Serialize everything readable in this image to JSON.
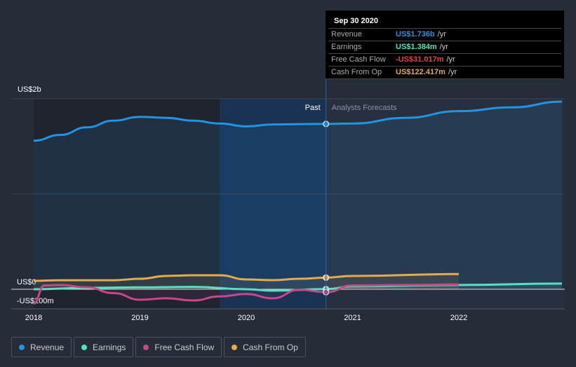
{
  "chart_data": {
    "type": "line",
    "title": "",
    "xlabel": "",
    "ylabel": "",
    "x_ticks": [
      "2018",
      "2019",
      "2020",
      "2021",
      "2022"
    ],
    "y_ticks": [
      "US$2b",
      "US$0",
      "-US$200m"
    ],
    "ylim_usd_m": [
      -250,
      2000
    ],
    "xlim": [
      2017.8,
      2022.98
    ],
    "past_label": "Past",
    "forecast_label": "Analysts Forecasts",
    "divider_x": 2020.75,
    "series": [
      {
        "name": "Revenue",
        "color": "#2394df",
        "unit": "m",
        "points": [
          [
            2018,
            1560
          ],
          [
            2018.25,
            1620
          ],
          [
            2018.5,
            1700
          ],
          [
            2018.75,
            1770
          ],
          [
            2019,
            1810
          ],
          [
            2019.25,
            1800
          ],
          [
            2019.5,
            1770
          ],
          [
            2019.75,
            1740
          ],
          [
            2020,
            1710
          ],
          [
            2020.25,
            1730
          ],
          [
            2020.75,
            1736
          ],
          [
            2021,
            1740
          ],
          [
            2021.5,
            1800
          ],
          [
            2022,
            1870
          ],
          [
            2022.5,
            1910
          ],
          [
            2022.97,
            1970
          ]
        ]
      },
      {
        "name": "Earnings",
        "color": "#58e1c1",
        "unit": "m",
        "points": [
          [
            2018,
            0
          ],
          [
            2018.5,
            15
          ],
          [
            2019,
            20
          ],
          [
            2019.5,
            25
          ],
          [
            2020,
            0
          ],
          [
            2020.25,
            -15
          ],
          [
            2020.75,
            1.384
          ],
          [
            2021,
            30
          ],
          [
            2022,
            45
          ],
          [
            2022.97,
            60
          ]
        ]
      },
      {
        "name": "Free Cash Flow",
        "color": "#c5488a",
        "unit": "m",
        "points": [
          [
            2018,
            -150
          ],
          [
            2018.1,
            40
          ],
          [
            2018.25,
            45
          ],
          [
            2018.5,
            20
          ],
          [
            2018.75,
            -40
          ],
          [
            2019,
            -110
          ],
          [
            2019.25,
            -95
          ],
          [
            2019.5,
            -118
          ],
          [
            2019.75,
            -75
          ],
          [
            2020,
            -50
          ],
          [
            2020.25,
            -95
          ],
          [
            2020.5,
            -5
          ],
          [
            2020.75,
            -31.017
          ],
          [
            2021,
            40
          ],
          [
            2021.5,
            45
          ],
          [
            2022,
            50
          ]
        ]
      },
      {
        "name": "Cash From Op",
        "color": "#e5a952",
        "unit": "m",
        "points": [
          [
            2018,
            88
          ],
          [
            2018.25,
            95
          ],
          [
            2018.75,
            95
          ],
          [
            2019,
            110
          ],
          [
            2019.25,
            140
          ],
          [
            2019.5,
            147
          ],
          [
            2019.75,
            147
          ],
          [
            2020,
            103
          ],
          [
            2020.25,
            96
          ],
          [
            2020.5,
            110
          ],
          [
            2020.75,
            122.417
          ],
          [
            2021,
            140
          ],
          [
            2022,
            160
          ]
        ]
      }
    ]
  },
  "tooltip": {
    "date": "Sep 30 2020",
    "rows": [
      {
        "label": "Revenue",
        "value": "US$1.736b",
        "unit": "/yr",
        "color": "#2394df"
      },
      {
        "label": "Earnings",
        "value": "US$1.384m",
        "unit": "/yr",
        "color": "#58e1c1"
      },
      {
        "label": "Free Cash Flow",
        "value": "-US$31.017m",
        "unit": "/yr",
        "color": "#e64141"
      },
      {
        "label": "Cash From Op",
        "value": "US$122.417m",
        "unit": "/yr",
        "color": "#e5a952"
      }
    ]
  },
  "legend": [
    {
      "label": "Revenue",
      "color": "#2394df"
    },
    {
      "label": "Earnings",
      "color": "#58e1c1"
    },
    {
      "label": "Free Cash Flow",
      "color": "#c5488a"
    },
    {
      "label": "Cash From Op",
      "color": "#e5a952"
    }
  ]
}
